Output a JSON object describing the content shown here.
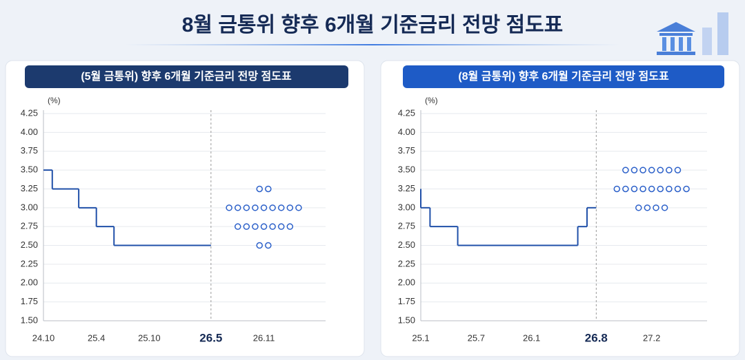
{
  "title": "8월 금통위 향후 6개월 기준금리 전망 점도표",
  "chart_data": [
    {
      "type": "step",
      "title": "(5월 금통위) 향후 6개월 기준금리 전망 점도표",
      "y_label": "(%)",
      "ylim": [
        1.5,
        4.25
      ],
      "yticks": [
        {
          "value": 1.5,
          "label": "1.50"
        },
        1.75,
        {
          "value": 2,
          "label": "2.00"
        },
        2.25,
        {
          "value": 2.5,
          "label": "2.50"
        },
        2.75,
        {
          "value": 3,
          "label": "3.00"
        },
        3.25,
        {
          "value": 3.5,
          "label": "3.50"
        },
        3.75,
        {
          "value": 4,
          "label": "4.00"
        },
        4.25
      ],
      "xlim": [
        "24.10",
        "27.6"
      ],
      "xticks": [
        "24.10",
        "25.4",
        "25.10",
        "26.5",
        "26.11"
      ],
      "series": [
        {
          "color": "#1f4fa8",
          "x": [
            "24.10",
            "24.11",
            "25.2",
            "25.4",
            "25.6",
            "26.5"
          ],
          "values": [
            3.5,
            3.25,
            3,
            2.75,
            2.5,
            2.5
          ]
        }
      ],
      "dots": {
        "x": "26.11",
        "color": "#2a5fc9",
        "rows": [
          {
            "value": 3.25,
            "count": 2
          },
          {
            "value": 3,
            "count": 9
          },
          {
            "value": 2.75,
            "count": 7
          },
          {
            "value": 2.5,
            "count": 2
          }
        ]
      }
    },
    {
      "type": "step",
      "title": "(8월 금통위) 향후 6개월 기준금리 전망 점도표",
      "y_label": "(%)",
      "ylim": [
        1.5,
        4.25
      ],
      "yticks": [
        {
          "value": 1.5,
          "label": "1.50"
        },
        1.75,
        {
          "value": 2,
          "label": "2.00"
        },
        2.25,
        {
          "value": 2.5,
          "label": "2.50"
        },
        2.75,
        {
          "value": 3,
          "label": "3.00"
        },
        3.25,
        {
          "value": 3.5,
          "label": "3.50"
        },
        3.75,
        {
          "value": 4,
          "label": "4.00"
        },
        4.25
      ],
      "xlim": [
        "25.1",
        "27.8"
      ],
      "xticks": [
        "25.1",
        "25.7",
        "26.1",
        "26.8",
        "27.2"
      ],
      "series": [
        {
          "color": "#1f4fa8",
          "x": [
            "25.1",
            "25.1",
            "25.2",
            "25.5",
            "26.6",
            "26.7",
            "26.8"
          ],
          "values": [
            3.25,
            3,
            2.75,
            2.5,
            2.75,
            3,
            3
          ]
        }
      ],
      "dots": {
        "x": "27.2",
        "color": "#2a5fc9",
        "rows": [
          {
            "value": 3.5,
            "count": 7
          },
          {
            "value": 3.25,
            "count": 9
          },
          {
            "value": 3,
            "count": 4
          }
        ]
      }
    }
  ]
}
